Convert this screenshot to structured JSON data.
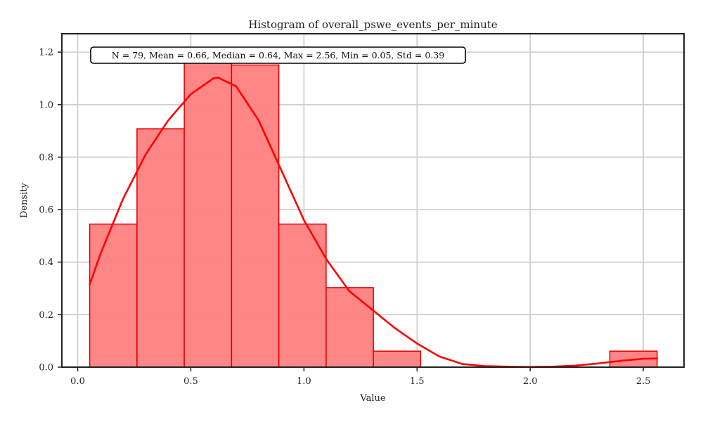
{
  "chart_data": {
    "type": "bar",
    "title": "Histogram of overall_pswe_events_per_minute",
    "xlabel": "Value",
    "ylabel": "Density",
    "xlim": [
      -0.07,
      2.68
    ],
    "ylim": [
      0,
      1.27
    ],
    "xticks": [
      0.0,
      0.5,
      1.0,
      1.5,
      2.0,
      2.5
    ],
    "xtick_labels": [
      "0.0",
      "0.5",
      "1.0",
      "1.5",
      "2.0",
      "2.5"
    ],
    "yticks": [
      0.0,
      0.2,
      0.4,
      0.6,
      0.8,
      1.0,
      1.2
    ],
    "ytick_labels": [
      "0.0",
      "0.2",
      "0.4",
      "0.6",
      "0.8",
      "1.0",
      "1.2"
    ],
    "grid": true,
    "bin_edges": [
      0.053,
      0.262,
      0.471,
      0.68,
      0.889,
      1.098,
      1.307,
      1.516,
      1.725,
      1.934,
      2.143,
      2.352,
      2.561
    ],
    "values": [
      0.545,
      0.908,
      1.165,
      1.151,
      0.545,
      0.303,
      0.061,
      0.0,
      0.0,
      0.0,
      0.0,
      0.061
    ],
    "kde": {
      "x": [
        0.053,
        0.1,
        0.2,
        0.3,
        0.4,
        0.5,
        0.6,
        0.62,
        0.7,
        0.8,
        0.9,
        1.0,
        1.1,
        1.2,
        1.3,
        1.4,
        1.5,
        1.6,
        1.7,
        1.8,
        1.9,
        2.0,
        2.1,
        2.2,
        2.3,
        2.4,
        2.5,
        2.561
      ],
      "y": [
        0.315,
        0.43,
        0.64,
        0.81,
        0.94,
        1.04,
        1.1,
        1.103,
        1.07,
        0.94,
        0.75,
        0.56,
        0.41,
        0.29,
        0.22,
        0.15,
        0.09,
        0.04,
        0.012,
        0.004,
        0.002,
        0.001,
        0.002,
        0.006,
        0.014,
        0.024,
        0.032,
        0.033
      ]
    },
    "annotation": "N = 79, Mean = 0.66, Median = 0.64, Max = 2.56, Min = 0.05, Std = 0.39",
    "colors": {
      "bar_fill": "#ff7f7f",
      "bar_edge": "#e00000",
      "kde_line": "#ff0000",
      "grid": "#cccccc",
      "axes": "#222222"
    }
  }
}
